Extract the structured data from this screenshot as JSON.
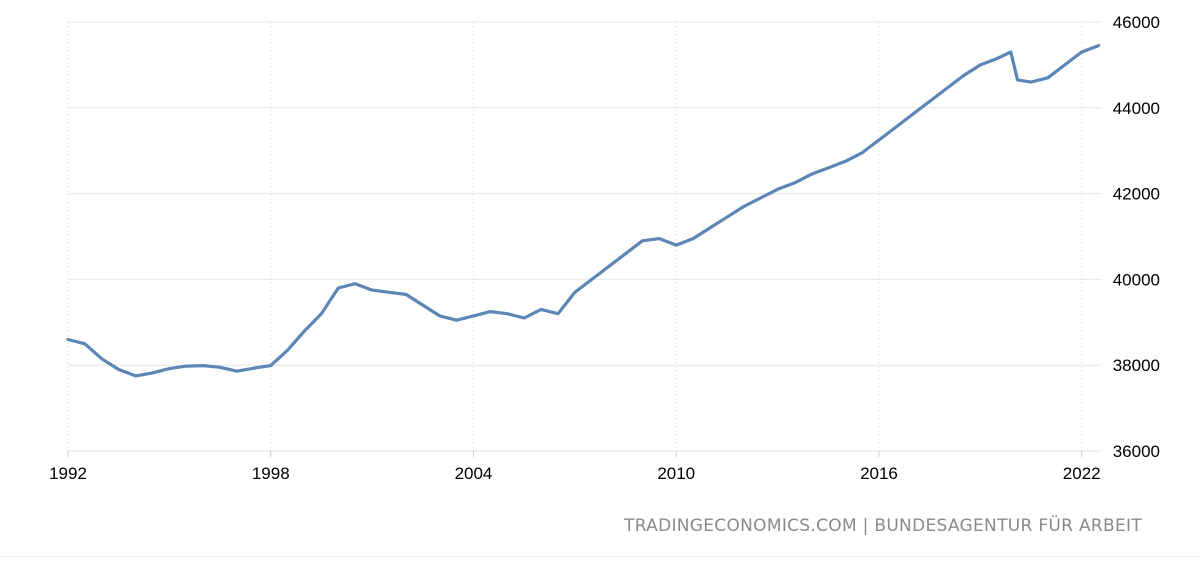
{
  "chart_data": {
    "type": "line",
    "title": "",
    "xlabel": "",
    "ylabel": "",
    "xlim": [
      1992,
      2022.6
    ],
    "ylim": [
      36000,
      46000
    ],
    "x_ticks": [
      "1992",
      "1998",
      "2004",
      "2010",
      "2016",
      "2022"
    ],
    "y_ticks": [
      "36000",
      "38000",
      "40000",
      "42000",
      "44000",
      "46000"
    ],
    "grid": true,
    "legend": "none",
    "series": [
      {
        "color": "#5b86b5",
        "x": [
          1992.0,
          1992.5,
          1993.0,
          1993.5,
          1994.0,
          1994.5,
          1995.0,
          1995.5,
          1996.0,
          1996.5,
          1997.0,
          1997.5,
          1998.0,
          1998.5,
          1999.0,
          1999.5,
          2000.0,
          2000.5,
          2001.0,
          2001.5,
          2002.0,
          2002.5,
          2003.0,
          2003.5,
          2004.0,
          2004.5,
          2005.0,
          2005.5,
          2006.0,
          2006.5,
          2007.0,
          2007.5,
          2008.0,
          2008.5,
          2009.0,
          2009.5,
          2010.0,
          2010.5,
          2011.0,
          2011.5,
          2012.0,
          2012.5,
          2013.0,
          2013.5,
          2014.0,
          2014.5,
          2015.0,
          2015.5,
          2016.0,
          2016.5,
          2017.0,
          2017.5,
          2018.0,
          2018.5,
          2019.0,
          2019.5,
          2019.9,
          2020.1,
          2020.5,
          2021.0,
          2021.5,
          2022.0,
          2022.5
        ],
        "y": [
          38600,
          38500,
          38150,
          37900,
          37750,
          37820,
          37920,
          37980,
          37990,
          37950,
          37860,
          37930,
          37990,
          38350,
          38800,
          39200,
          39800,
          39900,
          39750,
          39700,
          39650,
          39400,
          39150,
          39050,
          39150,
          39250,
          39200,
          39100,
          39300,
          39200,
          39700,
          40000,
          40300,
          40600,
          40900,
          40950,
          40800,
          40950,
          41200,
          41450,
          41700,
          41900,
          42100,
          42250,
          42450,
          42600,
          42750,
          42950,
          43250,
          43550,
          43850,
          44150,
          44450,
          44750,
          45000,
          45150,
          45300,
          44650,
          44600,
          44700,
          45000,
          45300,
          45450
        ]
      }
    ]
  },
  "credits": "TRADINGECONOMICS.COM  |  BUNDESAGENTUR FÜR ARBEIT"
}
